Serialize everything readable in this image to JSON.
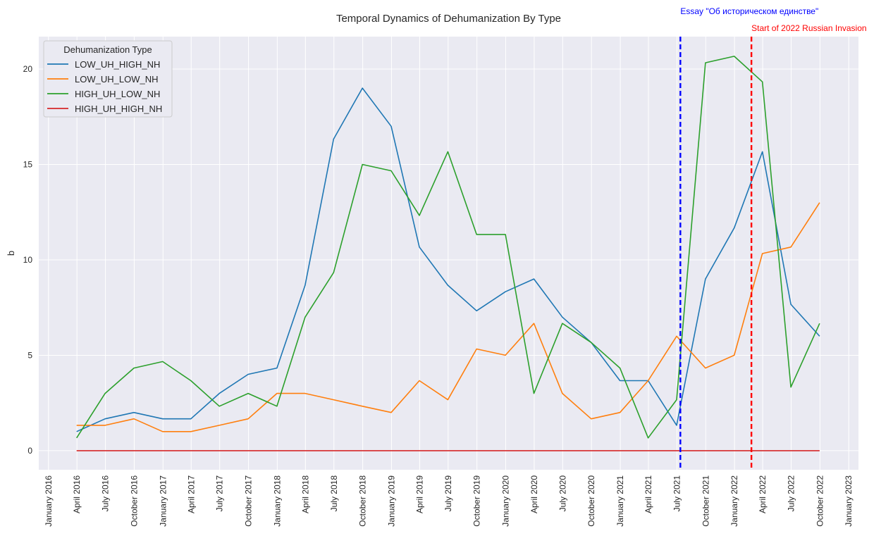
{
  "chart_data": {
    "type": "line",
    "title": "Temporal Dynamics of Dehumanization By Type",
    "xlabel": "",
    "ylabel": "b",
    "ylim": [
      -1,
      21.7
    ],
    "xlim": [
      "2015-12-01",
      "2023-02-01"
    ],
    "yticks": [
      0,
      5,
      10,
      15,
      20
    ],
    "grid": true,
    "background": "#eaeaf2",
    "xticks": [
      {
        "date": "2016-01-01",
        "label": "January 2016"
      },
      {
        "date": "2016-04-01",
        "label": "April 2016"
      },
      {
        "date": "2016-07-01",
        "label": "July 2016"
      },
      {
        "date": "2016-10-01",
        "label": "October 2016"
      },
      {
        "date": "2017-01-01",
        "label": "January 2017"
      },
      {
        "date": "2017-04-01",
        "label": "April 2017"
      },
      {
        "date": "2017-07-01",
        "label": "July 2017"
      },
      {
        "date": "2017-10-01",
        "label": "October 2017"
      },
      {
        "date": "2018-01-01",
        "label": "January 2018"
      },
      {
        "date": "2018-04-01",
        "label": "April 2018"
      },
      {
        "date": "2018-07-01",
        "label": "July 2018"
      },
      {
        "date": "2018-10-01",
        "label": "October 2018"
      },
      {
        "date": "2019-01-01",
        "label": "January 2019"
      },
      {
        "date": "2019-04-01",
        "label": "April 2019"
      },
      {
        "date": "2019-07-01",
        "label": "July 2019"
      },
      {
        "date": "2019-10-01",
        "label": "October 2019"
      },
      {
        "date": "2020-01-01",
        "label": "January 2020"
      },
      {
        "date": "2020-04-01",
        "label": "April 2020"
      },
      {
        "date": "2020-07-01",
        "label": "July 2020"
      },
      {
        "date": "2020-10-01",
        "label": "October 2020"
      },
      {
        "date": "2021-01-01",
        "label": "January 2021"
      },
      {
        "date": "2021-04-01",
        "label": "April 2021"
      },
      {
        "date": "2021-07-01",
        "label": "July 2021"
      },
      {
        "date": "2021-10-01",
        "label": "October 2021"
      },
      {
        "date": "2022-01-01",
        "label": "January 2022"
      },
      {
        "date": "2022-04-01",
        "label": "April 2022"
      },
      {
        "date": "2022-07-01",
        "label": "July 2022"
      },
      {
        "date": "2022-10-01",
        "label": "October 2022"
      },
      {
        "date": "2023-01-01",
        "label": "January 2023"
      }
    ],
    "x": [
      "2016-03-31",
      "2016-06-30",
      "2016-09-30",
      "2016-12-31",
      "2017-03-31",
      "2017-06-30",
      "2017-09-30",
      "2017-12-31",
      "2018-03-31",
      "2018-06-30",
      "2018-09-30",
      "2018-12-31",
      "2019-03-31",
      "2019-06-30",
      "2019-09-30",
      "2019-12-31",
      "2020-03-31",
      "2020-06-30",
      "2020-09-30",
      "2020-12-31",
      "2021-03-31",
      "2021-06-30",
      "2021-09-30",
      "2021-12-31",
      "2022-03-31",
      "2022-06-30",
      "2022-09-30"
    ],
    "series": [
      {
        "name": "LOW_UH_HIGH_NH",
        "color": "#1f77b4",
        "values": [
          1.0,
          1.67,
          2.0,
          1.67,
          1.67,
          3.0,
          4.0,
          4.33,
          8.67,
          16.33,
          19.0,
          17.0,
          10.67,
          8.67,
          7.33,
          8.33,
          9.0,
          7.0,
          5.67,
          3.67,
          3.67,
          1.33,
          9.0,
          11.67,
          15.67,
          7.67,
          6.0
        ]
      },
      {
        "name": "LOW_UH_LOW_NH",
        "color": "#ff7f0e",
        "values": [
          1.33,
          1.33,
          1.67,
          1.0,
          1.0,
          1.33,
          1.67,
          3.0,
          3.0,
          2.67,
          2.33,
          2.0,
          3.67,
          2.67,
          5.33,
          5.0,
          6.67,
          3.0,
          1.67,
          2.0,
          3.67,
          6.0,
          4.33,
          5.0,
          10.33,
          10.67,
          13.0
        ]
      },
      {
        "name": "HIGH_UH_LOW_NH",
        "color": "#2ca02c",
        "values": [
          0.67,
          3.0,
          4.33,
          4.67,
          3.67,
          2.33,
          3.0,
          2.33,
          7.0,
          9.33,
          15.0,
          14.67,
          12.33,
          15.67,
          11.33,
          11.33,
          3.0,
          6.67,
          5.67,
          4.33,
          0.67,
          2.67,
          20.33,
          20.67,
          19.33,
          3.33,
          6.67
        ]
      },
      {
        "name": "HIGH_UH_HIGH_NH",
        "color": "#d62728",
        "values": [
          0,
          0,
          0,
          0,
          0,
          0,
          0,
          0,
          0,
          0,
          0,
          0,
          0,
          0,
          0,
          0,
          0,
          0,
          0,
          0,
          0,
          0,
          0,
          0,
          0,
          0,
          0
        ]
      }
    ],
    "legend": {
      "title": "Dehumanization Type",
      "placement": "top-left"
    },
    "annotations": [
      {
        "date": "2021-07-12",
        "text": "Essay \"Об историческом единстве\"",
        "color": "#0000ff"
      },
      {
        "date": "2022-02-24",
        "text": "Start of 2022 Russian Invasion",
        "color": "#ff0000"
      }
    ]
  }
}
